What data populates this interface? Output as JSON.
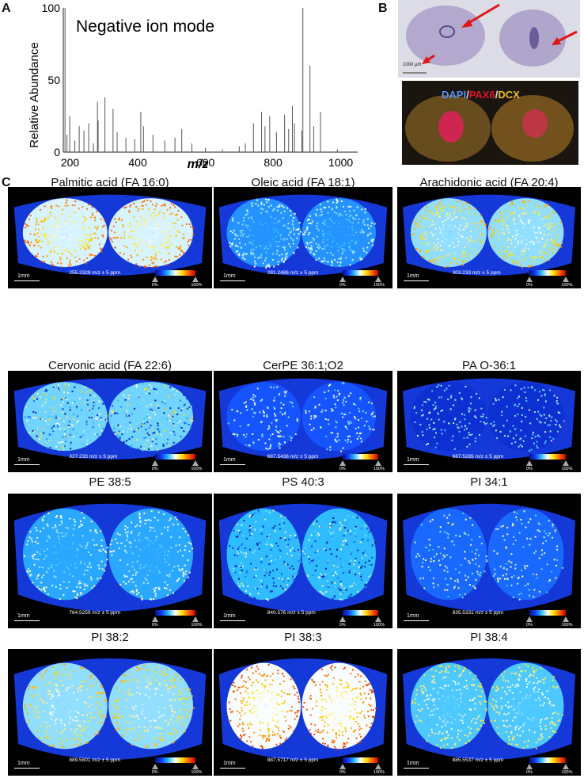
{
  "panel_labels": {
    "a": "A",
    "b": "B",
    "c": "C"
  },
  "spectrum": {
    "title": "Negative ion mode",
    "ylabel": "Relative Abundance",
    "xlabel": "m/z",
    "yticks": [
      "0",
      "50",
      "100"
    ],
    "xticks": [
      "200",
      "400",
      "600",
      "800",
      "1000"
    ]
  },
  "chart_data": {
    "type": "bar",
    "title": "Negative ion mode",
    "xlabel": "m/z",
    "ylabel": "Relative Abundance",
    "xlim": [
      180,
      1050
    ],
    "ylim": [
      0,
      100
    ],
    "x": [
      185,
      191,
      199,
      214,
      227,
      241,
      255,
      269,
      281,
      283,
      303,
      327,
      339,
      365,
      391,
      409,
      417,
      445,
      480,
      510,
      530,
      560,
      600,
      650,
      700,
      718,
      742,
      766,
      776,
      790,
      810,
      834,
      846,
      857,
      863,
      885,
      888,
      909,
      920,
      940,
      990
    ],
    "values": [
      100,
      12,
      25,
      8,
      18,
      15,
      20,
      6,
      35,
      22,
      38,
      30,
      14,
      10,
      9,
      28,
      18,
      12,
      8,
      10,
      16,
      6,
      3,
      2,
      4,
      6,
      20,
      28,
      18,
      25,
      14,
      26,
      16,
      32,
      20,
      15,
      100,
      60,
      18,
      28,
      2
    ]
  },
  "histology": {
    "scale_label": "1000 µm",
    "stain": {
      "dapi": "DAPI",
      "sep1": "/",
      "pax6": "PAX6",
      "sep2": "/",
      "dcx": "DCX"
    },
    "colors": {
      "dapi": "#5b8ff0",
      "pax6": "#e0102a",
      "dcx": "#f0c020"
    }
  },
  "images": {
    "scale_label": "1mm",
    "suffix": " m/z ± 5 ppm",
    "cbar_min": "0%",
    "cbar_max": "100%",
    "tiles": [
      {
        "title": "Palmitic acid (FA 16:0)",
        "mz": "255.2329",
        "intensity": 0.85,
        "edge": 0.45,
        "style": "ring"
      },
      {
        "title": "Oleic acid (FA 18:1)",
        "mz": "281.2486",
        "intensity": 0.5,
        "edge": 0.2,
        "style": "ring"
      },
      {
        "title": "Arachidonic acid (FA 20:4)",
        "mz": "303.233",
        "intensity": 0.75,
        "edge": 0.3,
        "style": "ring"
      },
      {
        "title": "Cervonic acid (FA 22:6)",
        "mz": "327.233",
        "intensity": 0.7,
        "edge": 0.2,
        "style": "speckle"
      },
      {
        "title": "CerPE 36:1;O2",
        "mz": "687.5436",
        "intensity": 0.35,
        "edge": 0.1,
        "style": "sparse"
      },
      {
        "title": "PA O-36:1",
        "mz": "687.5285",
        "intensity": 0.2,
        "edge": 0.05,
        "style": "sparse"
      },
      {
        "title": "PE 38:5",
        "mz": "764.5259",
        "intensity": 0.55,
        "edge": 0.3,
        "style": "ring"
      },
      {
        "title": "PS 40:3",
        "mz": "840.576",
        "intensity": 0.6,
        "edge": 0.3,
        "style": "speckle"
      },
      {
        "title": "PI 34:1",
        "mz": "835.5331",
        "intensity": 0.4,
        "edge": 0.1,
        "style": "sparse"
      },
      {
        "title": "PI 38:2",
        "mz": "889.5801",
        "intensity": 0.75,
        "edge": 0.35,
        "style": "ring"
      },
      {
        "title": "PI 38:3",
        "mz": "887.5717",
        "intensity": 0.9,
        "edge": 0.4,
        "style": "ring"
      },
      {
        "title": "PI 38:4",
        "mz": "885.5537",
        "intensity": 0.65,
        "edge": 0.4,
        "style": "ring"
      }
    ]
  }
}
